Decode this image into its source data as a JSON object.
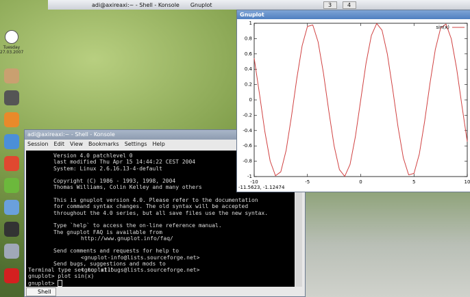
{
  "taskbar": {
    "tasks": [
      "adi@axireaxi:~ - Shell - Konsole",
      "Gnuplot"
    ],
    "desktops": [
      "3",
      "4"
    ]
  },
  "clock": {
    "day": "Tuesday",
    "date": "27.03.2007"
  },
  "konsole": {
    "title": "adi@axireaxi:~ - Shell - Konsole",
    "menu": [
      "Session",
      "Edit",
      "View",
      "Bookmarks",
      "Settings",
      "Help"
    ],
    "banner": [
      [
        "Version 4.0 patchlevel 0",
        "last modified Thu Apr 15 14:44:22 CEST 2004",
        "System: Linux 2.6.16.13-4-default"
      ],
      [
        "Copyright (C) 1986 - 1993, 1998, 2004",
        "Thomas Williams, Colin Kelley and many others"
      ],
      [
        "This is gnuplot version 4.0.  Please refer to the documentation",
        "for command syntax changes.  The old syntax will be accepted",
        "throughout the 4.0 series, but all save files use the new syntax."
      ],
      [
        "Type `help` to access the on-line reference manual.",
        "The gnuplot FAQ is available from",
        "http://www.gnuplot.info/faq/"
      ],
      [
        "Send comments and requests for help to",
        "<gnuplot-info@lists.sourceforge.net>",
        "Send bugs, suggestions and mods to",
        "<gnuplot-bugs@lists.sourceforge.net>"
      ]
    ],
    "session": [
      "Terminal type set to 'x11'",
      "gnuplot> plot sin(x)",
      "gnuplot>"
    ],
    "tab": "Shell"
  },
  "gnuplot_window": {
    "title": "Gnuplot",
    "status": "-11.5623, -1.12474"
  },
  "chart_data": {
    "type": "line",
    "x": [
      -10,
      -9.5,
      -9,
      -8.5,
      -8,
      -7.5,
      -7,
      -6.5,
      -6,
      -5.5,
      -5,
      -4.5,
      -4,
      -3.5,
      -3,
      -2.5,
      -2,
      -1.5,
      -1,
      -0.5,
      0,
      0.5,
      1,
      1.5,
      2,
      2.5,
      3,
      3.5,
      4,
      4.5,
      5,
      5.5,
      6,
      6.5,
      7,
      7.5,
      8,
      8.5,
      9,
      9.5,
      10
    ],
    "series": [
      {
        "name": "sin(x)",
        "color": "#d04040",
        "values": [
          0.544,
          0.075,
          -0.412,
          -0.798,
          -0.989,
          -0.938,
          -0.657,
          -0.215,
          0.279,
          0.706,
          0.959,
          0.978,
          0.757,
          0.351,
          -0.141,
          -0.598,
          -0.909,
          -0.997,
          -0.841,
          -0.479,
          0,
          0.479,
          0.841,
          0.997,
          0.909,
          0.598,
          0.141,
          -0.351,
          -0.757,
          -0.978,
          -0.959,
          -0.706,
          -0.279,
          0.215,
          0.657,
          0.938,
          0.989,
          0.798,
          0.412,
          -0.075,
          -0.544
        ]
      }
    ],
    "xlim": [
      -10,
      10
    ],
    "xticks": [
      -10,
      -5,
      0,
      5,
      10
    ],
    "ylim": [
      -1,
      1
    ],
    "yticks": [
      -1,
      -0.8,
      -0.6,
      -0.4,
      -0.2,
      0,
      0.2,
      0.4,
      0.6,
      0.8,
      1
    ],
    "grid": false,
    "legend": "top-right"
  }
}
